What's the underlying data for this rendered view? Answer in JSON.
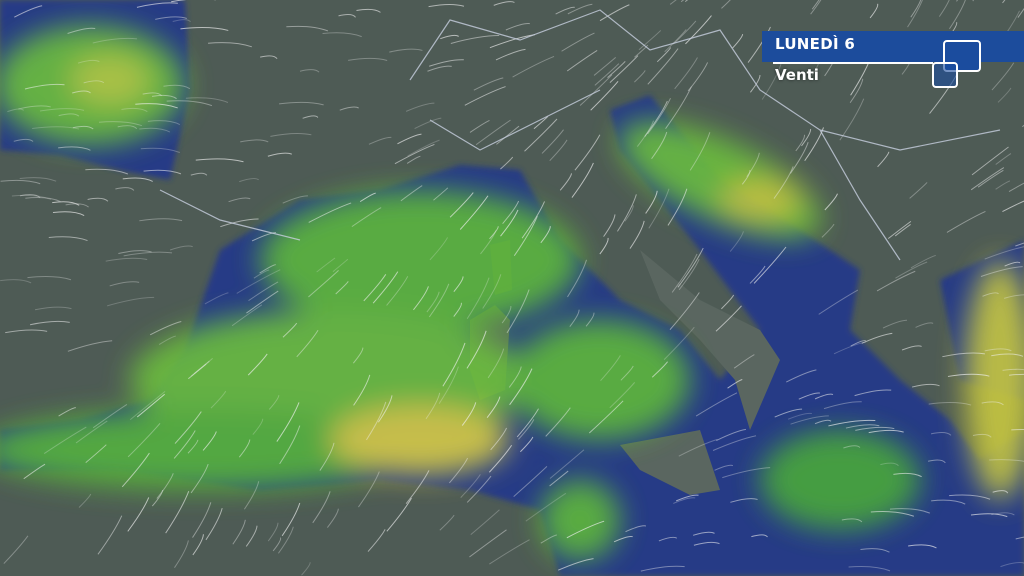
{
  "header": {
    "day_label": "LUNEDÌ 6",
    "subtitle": "Venti"
  },
  "colors": {
    "banner": "#1c4c9c",
    "sea": "#263a86",
    "land": "#4e5b55",
    "wind_low": "#3fae3a",
    "wind_mid": "#8fc83a",
    "wind_high": "#e0cf45"
  },
  "logo": {
    "icon": "overlapping-squares-icon"
  }
}
